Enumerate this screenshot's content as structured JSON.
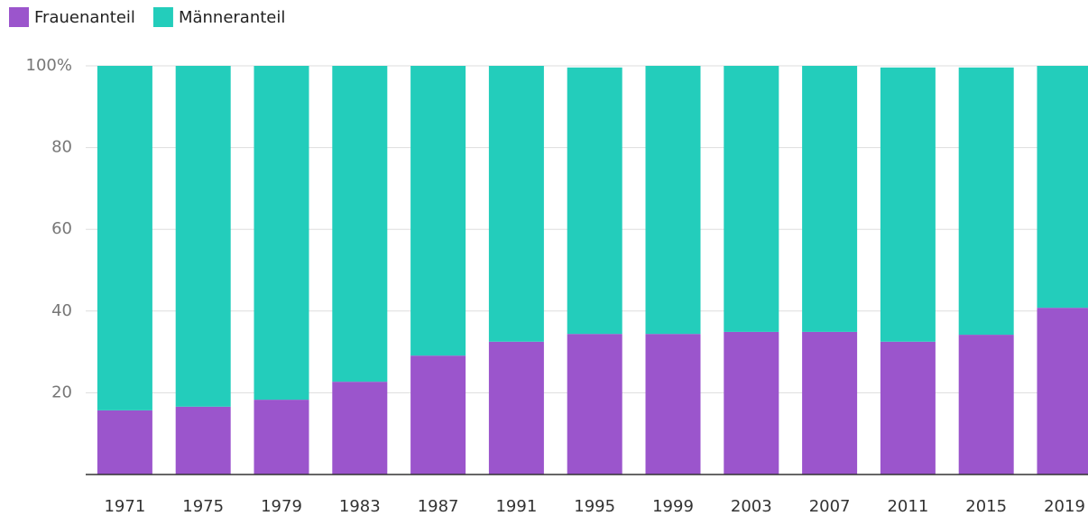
{
  "chart_data": {
    "type": "stacked_bar",
    "categories": [
      "1971",
      "1975",
      "1979",
      "1983",
      "1987",
      "1991",
      "1995",
      "1999",
      "2003",
      "2007",
      "2011",
      "2015",
      "2019"
    ],
    "series": [
      {
        "name": "Frauenanteil",
        "color": "#9b55cc",
        "values": [
          15.7,
          16.6,
          18.3,
          22.7,
          29.1,
          32.5,
          34.4,
          34.4,
          34.9,
          34.9,
          32.5,
          34.2,
          40.8
        ]
      },
      {
        "name": "Männeranteil",
        "color": "#23cdbb",
        "values": [
          84.3,
          83.4,
          81.7,
          77.3,
          70.9,
          67.5,
          65.2,
          65.6,
          65.1,
          65.1,
          67.1,
          65.4,
          59.2
        ]
      }
    ],
    "ylim": [
      0,
      100
    ],
    "yticks": [
      20,
      40,
      60,
      80,
      {
        "value": 100,
        "label": "100%"
      }
    ],
    "grid": true
  }
}
